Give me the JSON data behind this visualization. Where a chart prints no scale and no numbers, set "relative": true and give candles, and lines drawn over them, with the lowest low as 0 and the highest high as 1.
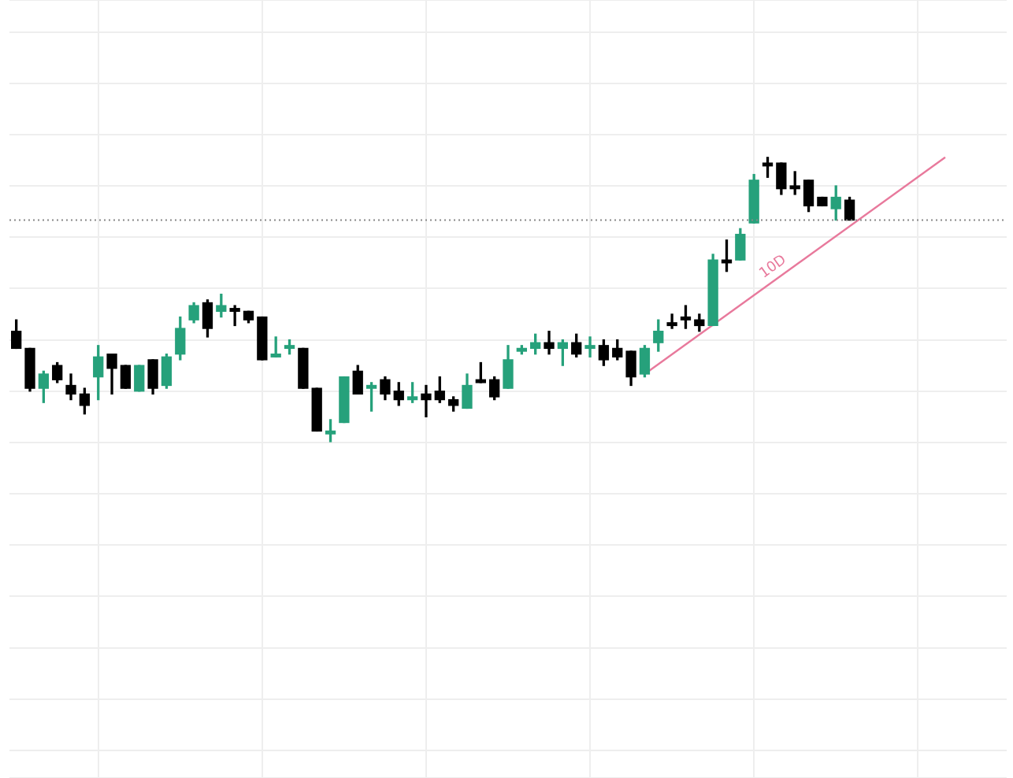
{
  "chart_data": {
    "type": "candlestick",
    "relative": true,
    "grid": true,
    "categories": [
      null,
      null,
      null,
      null,
      null,
      null,
      null,
      null,
      null,
      null,
      null,
      null,
      null,
      null,
      null,
      null,
      null,
      null,
      null,
      null,
      null,
      null,
      null,
      null,
      null,
      null,
      null,
      null,
      null,
      null,
      null,
      null,
      null,
      null,
      null,
      null,
      null,
      null,
      null,
      null,
      null,
      null,
      null,
      null,
      null,
      null,
      null,
      null,
      null,
      null,
      null,
      null,
      null,
      null,
      null,
      null,
      null,
      null,
      null,
      null,
      null,
      null,
      null,
      null,
      null,
      null,
      null,
      null,
      null,
      null,
      null,
      null,
      null
    ],
    "ohlc": [
      [
        0.39,
        0.43,
        0.33,
        0.33
      ],
      [
        0.33,
        0.33,
        0.18,
        0.19
      ],
      [
        0.19,
        0.25,
        0.14,
        0.24
      ],
      [
        0.27,
        0.28,
        0.21,
        0.22
      ],
      [
        0.2,
        0.24,
        0.15,
        0.17
      ],
      [
        0.17,
        0.19,
        0.1,
        0.13
      ],
      [
        0.23,
        0.34,
        0.15,
        0.3
      ],
      [
        0.31,
        0.31,
        0.17,
        0.26
      ],
      [
        0.27,
        0.27,
        0.19,
        0.19
      ],
      [
        0.18,
        0.27,
        0.18,
        0.27
      ],
      [
        0.29,
        0.29,
        0.17,
        0.19
      ],
      [
        0.2,
        0.31,
        0.19,
        0.3
      ],
      [
        0.31,
        0.44,
        0.29,
        0.4
      ],
      [
        0.43,
        0.49,
        0.42,
        0.48
      ],
      [
        0.49,
        0.5,
        0.37,
        0.4
      ],
      [
        0.46,
        0.52,
        0.44,
        0.48
      ],
      [
        0.47,
        0.48,
        0.41,
        0.46
      ],
      [
        0.46,
        0.46,
        0.42,
        0.43
      ],
      [
        0.44,
        0.44,
        0.29,
        0.29
      ],
      [
        0.3,
        0.37,
        0.3,
        0.31
      ],
      [
        0.33,
        0.36,
        0.31,
        0.34
      ],
      [
        0.33,
        0.33,
        0.19,
        0.19
      ],
      [
        0.19,
        0.19,
        0.04,
        0.04
      ],
      [
        0.03,
        0.08,
        0,
        0.04
      ],
      [
        0.07,
        0.23,
        0.07,
        0.23
      ],
      [
        0.25,
        0.27,
        0.17,
        0.17
      ],
      [
        0.19,
        0.21,
        0.11,
        0.2
      ],
      [
        0.22,
        0.23,
        0.15,
        0.17
      ],
      [
        0.18,
        0.21,
        0.13,
        0.15
      ],
      [
        0.15,
        0.21,
        0.14,
        0.16
      ],
      [
        0.17,
        0.2,
        0.09,
        0.15
      ],
      [
        0.18,
        0.23,
        0.14,
        0.15
      ],
      [
        0.15,
        0.16,
        0.11,
        0.13
      ],
      [
        0.12,
        0.24,
        0.12,
        0.2
      ],
      [
        0.22,
        0.28,
        0.21,
        0.21
      ],
      [
        0.22,
        0.23,
        0.15,
        0.16
      ],
      [
        0.19,
        0.34,
        0.19,
        0.29
      ],
      [
        0.32,
        0.34,
        0.31,
        0.33
      ],
      [
        0.33,
        0.38,
        0.31,
        0.35
      ],
      [
        0.35,
        0.39,
        0.31,
        0.33
      ],
      [
        0.33,
        0.36,
        0.27,
        0.35
      ],
      [
        0.35,
        0.38,
        0.3,
        0.31
      ],
      [
        0.33,
        0.37,
        0.3,
        0.34
      ],
      [
        0.34,
        0.36,
        0.27,
        0.29
      ],
      [
        0.33,
        0.36,
        0.29,
        0.3
      ],
      [
        0.32,
        0.32,
        0.2,
        0.23
      ],
      [
        0.24,
        0.34,
        0.23,
        0.33
      ],
      [
        0.35,
        0.43,
        0.32,
        0.39
      ],
      [
        0.42,
        0.45,
        0.4,
        0.41
      ],
      [
        0.44,
        0.48,
        0.4,
        0.43
      ],
      [
        0.43,
        0.45,
        0.39,
        0.41
      ],
      [
        0.41,
        0.66,
        0.41,
        0.64
      ],
      [
        0.64,
        0.71,
        0.6,
        0.63
      ],
      [
        0.64,
        0.75,
        0.64,
        0.73
      ],
      [
        0.77,
        0.94,
        0.77,
        0.92
      ],
      [
        0.98,
        1,
        0.93,
        0.97
      ],
      [
        0.98,
        0.98,
        0.87,
        0.89
      ],
      [
        0.9,
        0.95,
        0.87,
        0.89
      ],
      [
        0.92,
        0.92,
        0.81,
        0.83
      ],
      [
        0.86,
        0.86,
        0.83,
        0.83
      ],
      [
        0.82,
        0.9,
        0.78,
        0.86
      ],
      [
        0.85,
        0.86,
        0.78,
        0.78
      ],
      null,
      null,
      null,
      null,
      null,
      null,
      null,
      null,
      null,
      null,
      null
    ],
    "colors": [
      "#000000",
      "#000000",
      "#26a17b",
      "#000000",
      "#000000",
      "#000000",
      "#26a17b",
      "#000000",
      "#000000",
      "#26a17b",
      "#000000",
      "#26a17b",
      "#26a17b",
      "#26a17b",
      "#000000",
      "#26a17b",
      "#000000",
      "#000000",
      "#000000",
      "#26a17b",
      "#26a17b",
      "#000000",
      "#000000",
      "#26a17b",
      "#26a17b",
      "#000000",
      "#26a17b",
      "#000000",
      "#000000",
      "#26a17b",
      "#000000",
      "#000000",
      "#000000",
      "#26a17b",
      "#000000",
      "#000000",
      "#26a17b",
      "#26a17b",
      "#26a17b",
      "#000000",
      "#26a17b",
      "#000000",
      "#26a17b",
      "#000000",
      "#000000",
      "#000000",
      "#26a17b",
      "#26a17b",
      "#000000",
      "#000000",
      "#000000",
      "#26a17b",
      "#000000",
      "#26a17b",
      "#26a17b",
      "#000000",
      "#000000",
      "#000000",
      "#000000",
      "#000000",
      "#26a17b",
      "#000000",
      null,
      null,
      null,
      null,
      null,
      null,
      null,
      null,
      null,
      null,
      null
    ],
    "series": [
      {
        "type": "line",
        "color": "#e8799c",
        "values": [
          null,
          null,
          null,
          null,
          null,
          null,
          null,
          null,
          null,
          null,
          null,
          null,
          null,
          null,
          null,
          null,
          null,
          null,
          null,
          null,
          null,
          null,
          null,
          null,
          null,
          null,
          null,
          null,
          null,
          null,
          null,
          null,
          null,
          null,
          null,
          null,
          null,
          null,
          null,
          null,
          null,
          null,
          null,
          null,
          null,
          null,
          0.24,
          null,
          null,
          null,
          null,
          null,
          null,
          null,
          null,
          null,
          null,
          null,
          null,
          null,
          null,
          null,
          null,
          null,
          null,
          null,
          null,
          null,
          1.0,
          null,
          null,
          null,
          null
        ]
      }
    ],
    "annotations": [
      "10D"
    ],
    "ref_lines": [
      {
        "axis": "y",
        "value": 0.78,
        "color": "#888888",
        "line_style": "dotted"
      }
    ]
  }
}
